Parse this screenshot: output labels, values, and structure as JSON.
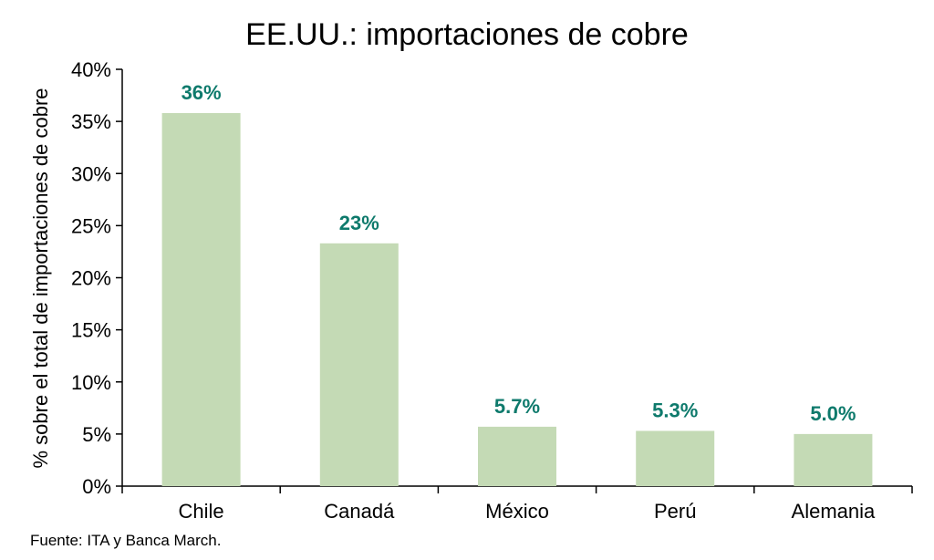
{
  "chart_data": {
    "type": "bar",
    "title": "EE.UU.: importaciones de cobre",
    "ylabel": "% sobre el total de importaciones de cobre",
    "xlabel": "",
    "categories": [
      "Chile",
      "Canadá",
      "México",
      "Perú",
      "Alemania"
    ],
    "values": [
      35.8,
      23.3,
      5.7,
      5.3,
      5.0
    ],
    "data_labels": [
      "36%",
      "23%",
      "5.7%",
      "5.3%",
      "5.0%"
    ],
    "ylim": [
      0,
      40
    ],
    "yticks": [
      0,
      5,
      10,
      15,
      20,
      25,
      30,
      35,
      40
    ],
    "ytick_labels": [
      "0%",
      "5%",
      "10%",
      "15%",
      "20%",
      "25%",
      "30%",
      "35%",
      "40%"
    ],
    "grid": false,
    "legend": "none",
    "colors": {
      "bar": "#c4dab5",
      "data_label": "#0e7a6c",
      "axis": "#000000"
    }
  },
  "footer": {
    "source": "Fuente: ITA y Banca March."
  }
}
